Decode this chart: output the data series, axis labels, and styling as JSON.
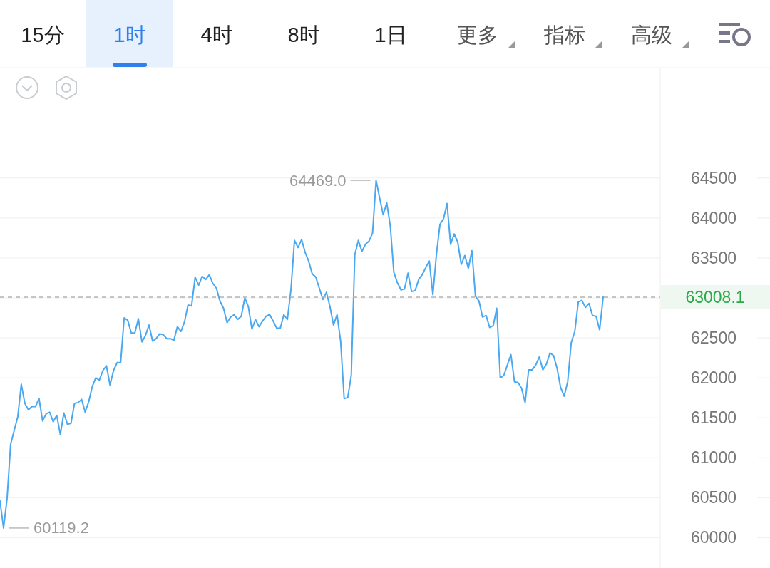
{
  "chart_data": {
    "type": "line",
    "annotations": [
      "15分",
      "1时",
      "4时",
      "8时",
      "1日",
      "更多",
      "指标",
      "高级",
      "64469.0",
      "60119.2"
    ],
    "categories": [
      null,
      null,
      null,
      null,
      null,
      null,
      null,
      null,
      null,
      null,
      null,
      null,
      null,
      null,
      null,
      null,
      null,
      null,
      null,
      null,
      null,
      null,
      null,
      null,
      null,
      null,
      null,
      null,
      null,
      null,
      null,
      null,
      null,
      null,
      null,
      null,
      null,
      null,
      null,
      null,
      null,
      null,
      null,
      null,
      null,
      null,
      null,
      null,
      null,
      null,
      null,
      null,
      null,
      null,
      null,
      null,
      null,
      null,
      null,
      null,
      null,
      null,
      null,
      null,
      null,
      null,
      null,
      null,
      null,
      null,
      null,
      null,
      null,
      null,
      null,
      null,
      null,
      null,
      null,
      null,
      null,
      null,
      null,
      null,
      null,
      null,
      null,
      null,
      null,
      null,
      null,
      null,
      null,
      null,
      null,
      null,
      null,
      null,
      null,
      null,
      null,
      null,
      null,
      null,
      null,
      null,
      null,
      null,
      null,
      null,
      null,
      null,
      null,
      null,
      null,
      null,
      null,
      null,
      null,
      null,
      null,
      null,
      null,
      null,
      null,
      null,
      null,
      null,
      null,
      null,
      null,
      null,
      null,
      null,
      null,
      null,
      null,
      null,
      null,
      null,
      null,
      null,
      null,
      null,
      null,
      null,
      null,
      null,
      null,
      null,
      null,
      null,
      null,
      null,
      null,
      null,
      null,
      null,
      null,
      null,
      null,
      null,
      null,
      null,
      null,
      null,
      null,
      null,
      null,
      null,
      null
    ],
    "series": [
      {
        "color": "#4aa8f0",
        "values": [
          60460,
          60120,
          60490,
          61170,
          61340,
          61510,
          61920,
          61680,
          61600,
          61640,
          61640,
          61740,
          61460,
          61550,
          61570,
          61450,
          61530,
          61290,
          61560,
          61420,
          61430,
          61680,
          61690,
          61730,
          61570,
          61700,
          61890,
          62000,
          61970,
          62090,
          62150,
          61910,
          62090,
          62190,
          62190,
          62750,
          62720,
          62560,
          62560,
          62740,
          62450,
          62530,
          62660,
          62460,
          62490,
          62550,
          62540,
          62490,
          62490,
          62470,
          62640,
          62580,
          62700,
          62910,
          62900,
          63260,
          63160,
          63270,
          63230,
          63290,
          63180,
          63120,
          62960,
          62870,
          62690,
          62760,
          62790,
          62730,
          62770,
          63000,
          62890,
          62610,
          62730,
          62640,
          62710,
          62770,
          62790,
          62710,
          62620,
          62620,
          62790,
          62730,
          63100,
          63720,
          63630,
          63730,
          63570,
          63460,
          63300,
          63260,
          63120,
          62980,
          63070,
          62890,
          62660,
          62790,
          62460,
          61740,
          61750,
          62030,
          63540,
          63720,
          63580,
          63670,
          63710,
          63810,
          64470,
          64250,
          64040,
          64190,
          63900,
          63320,
          63190,
          63100,
          63110,
          63310,
          63080,
          63090,
          63230,
          63290,
          63380,
          63460,
          63040,
          63540,
          63920,
          63990,
          64180,
          63670,
          63800,
          63700,
          63420,
          63530,
          63370,
          63590,
          63020,
          62960,
          62760,
          62780,
          62630,
          62650,
          62870,
          62000,
          62030,
          62160,
          62290,
          61950,
          61940,
          61870,
          61690,
          62100,
          62100,
          62160,
          62260,
          62100,
          62170,
          62310,
          62280,
          62120,
          61880,
          61770,
          61950,
          62440,
          62580,
          62950,
          62970,
          62880,
          62930,
          62780,
          62770,
          62600,
          63010
        ]
      }
    ],
    "ylim": [
      59620,
      65880
    ],
    "yticks": [
      60000,
      60500,
      61000,
      61500,
      62000,
      62500,
      {
        "value": 63000,
        "label": null
      },
      63500,
      64000,
      64500
    ],
    "ref_lines": [
      {
        "axis": "y",
        "value": 63008.1,
        "label": "63008.1",
        "color": "#b4b4b4",
        "line_style": "dashed"
      }
    ],
    "grid": "y",
    "marker": "none",
    "line_style": "solid"
  }
}
